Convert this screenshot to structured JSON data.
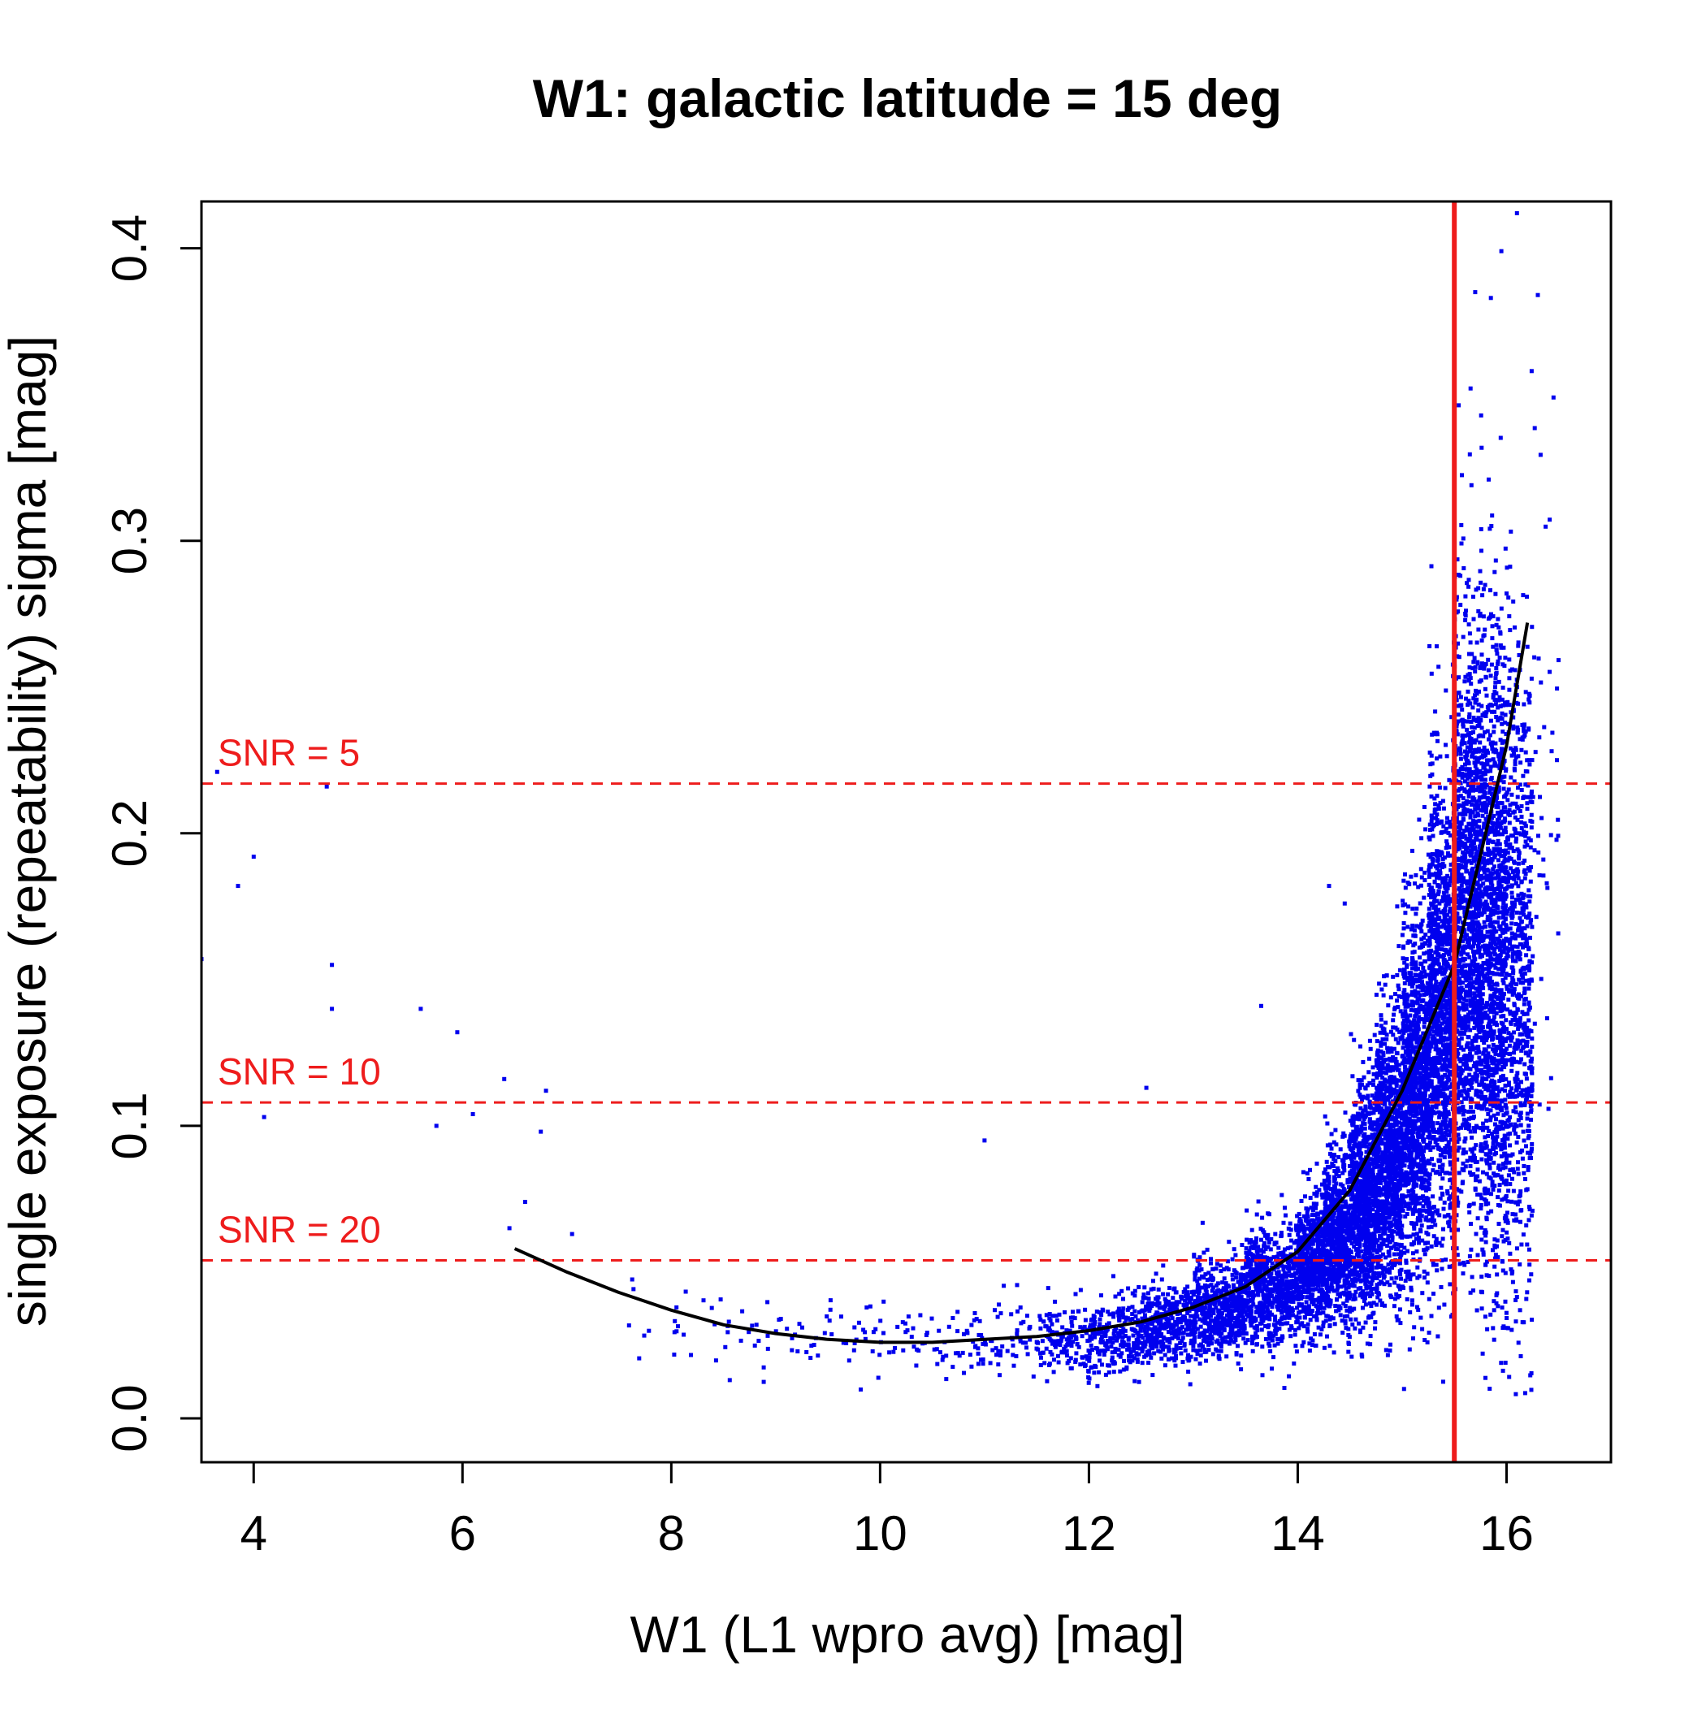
{
  "chart_data": {
    "type": "scatter",
    "title": "W1: galactic latitude = 15 deg",
    "xlabel": "W1 (L1 wpro avg) [mag]",
    "ylabel": "single exposure (repeatability) sigma [mag]",
    "xlim": [
      3.5,
      17.0
    ],
    "ylim": [
      -0.015,
      0.416
    ],
    "xticks": [
      4,
      6,
      8,
      10,
      12,
      14,
      16
    ],
    "xtick_labels": [
      "4",
      "6",
      "8",
      "10",
      "12",
      "14",
      "16"
    ],
    "yticks": [
      0.0,
      0.1,
      0.2,
      0.3,
      0.4
    ],
    "ytick_labels": [
      "0.0",
      "0.1",
      "0.2",
      "0.3",
      "0.4"
    ],
    "grid": false,
    "colors": {
      "points": "#0000ee",
      "fit_line": "#000000",
      "reference_lines": "#ee1c1c",
      "axes": "#000000"
    },
    "vertical_line": {
      "x": 15.5,
      "color": "#ee1c1c",
      "style": "solid"
    },
    "horizontal_lines": [
      {
        "label": "SNR = 5",
        "y": 0.217
      },
      {
        "label": "SNR = 10",
        "y": 0.108
      },
      {
        "label": "SNR = 20",
        "y": 0.054
      }
    ],
    "fit_curve": {
      "x": [
        6.5,
        7.0,
        7.5,
        8.0,
        8.5,
        9.0,
        9.5,
        10.0,
        10.5,
        11.0,
        11.5,
        12.0,
        12.5,
        13.0,
        13.5,
        14.0,
        14.5,
        15.0,
        15.5,
        16.0,
        16.2
      ],
      "y": [
        0.058,
        0.05,
        0.043,
        0.037,
        0.032,
        0.029,
        0.027,
        0.026,
        0.026,
        0.027,
        0.028,
        0.03,
        0.033,
        0.038,
        0.045,
        0.057,
        0.078,
        0.112,
        0.155,
        0.23,
        0.272
      ]
    },
    "scatter_density_bins": {
      "x_start": [
        7.5,
        8.5,
        9.5,
        10.5,
        11.5,
        12.0,
        12.5,
        13.0,
        13.5,
        14.0,
        14.25,
        14.5,
        14.75,
        15.0,
        15.25,
        15.5,
        15.75,
        16.0,
        16.25
      ],
      "x_end": [
        8.5,
        9.5,
        10.5,
        11.5,
        12.0,
        12.5,
        13.0,
        13.5,
        14.0,
        14.25,
        14.5,
        14.75,
        15.0,
        15.25,
        15.5,
        15.75,
        16.0,
        16.25,
        16.5
      ],
      "count": [
        20,
        35,
        50,
        90,
        140,
        230,
        380,
        520,
        650,
        550,
        700,
        850,
        1000,
        1100,
        1200,
        1300,
        1300,
        700,
        40
      ],
      "center": [
        0.036,
        0.028,
        0.027,
        0.026,
        0.027,
        0.029,
        0.032,
        0.037,
        0.045,
        0.053,
        0.062,
        0.074,
        0.09,
        0.112,
        0.14,
        0.17,
        0.16,
        0.15,
        0.2
      ],
      "spread": [
        0.008,
        0.007,
        0.006,
        0.006,
        0.006,
        0.007,
        0.007,
        0.008,
        0.01,
        0.012,
        0.015,
        0.019,
        0.024,
        0.03,
        0.04,
        0.05,
        0.055,
        0.055,
        0.06
      ]
    },
    "outliers": {
      "x": [
        3.5,
        3.65,
        3.85,
        4.0,
        4.1,
        4.7,
        4.75,
        4.75,
        5.6,
        5.95,
        5.75,
        6.1,
        6.4,
        6.45,
        6.6,
        6.75,
        6.8,
        7.05,
        11.0,
        12.55,
        13.65,
        14.3,
        14.45,
        15.7,
        15.85,
        15.95,
        16.1,
        16.3,
        16.45
      ],
      "y": [
        0.157,
        0.221,
        0.182,
        0.192,
        0.103,
        0.216,
        0.155,
        0.14,
        0.14,
        0.132,
        0.1,
        0.104,
        0.116,
        0.065,
        0.074,
        0.098,
        0.112,
        0.063,
        0.095,
        0.113,
        0.141,
        0.182,
        0.176,
        0.385,
        0.383,
        0.399,
        0.412,
        0.384,
        0.349
      ]
    }
  }
}
